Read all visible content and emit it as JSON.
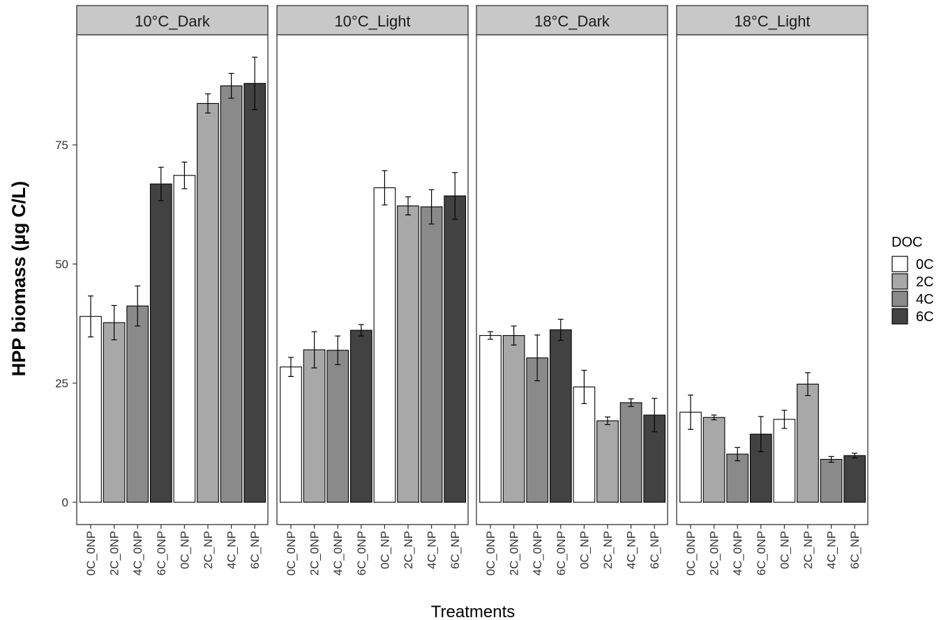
{
  "chart_data": {
    "type": "bar",
    "title": "",
    "xlabel": "Treatments",
    "ylabel": "HPP biomass (µg C/L)",
    "ylim": [
      0,
      97
    ],
    "yticks": [
      "0",
      "25",
      "50",
      "75"
    ],
    "grid": false,
    "legend": {
      "title": "DOC",
      "position": "right",
      "entries": [
        {
          "label": "0C",
          "color": "#ffffff"
        },
        {
          "label": "2C",
          "color": "#a8a8a8"
        },
        {
          "label": "4C",
          "color": "#8a8a8a"
        },
        {
          "label": "6C",
          "color": "#424242"
        }
      ]
    },
    "categories": [
      "0C_0NP",
      "2C_0NP",
      "4C_0NP",
      "6C_0NP",
      "0C_NP",
      "2C_NP",
      "4C_NP",
      "6C_NP"
    ],
    "fill_by_category": [
      "0C",
      "2C",
      "4C",
      "6C",
      "0C",
      "2C",
      "4C",
      "6C"
    ],
    "panels": [
      {
        "strip": "10°C_Dark",
        "values": [
          39.0,
          37.7,
          41.2,
          66.8,
          68.6,
          83.7,
          87.4,
          87.9
        ],
        "errors": [
          4.3,
          3.6,
          4.2,
          3.5,
          2.8,
          2.0,
          2.6,
          5.5
        ]
      },
      {
        "strip": "10°C_Light",
        "values": [
          28.4,
          32.0,
          31.9,
          36.1,
          66.0,
          62.2,
          62.0,
          64.3
        ],
        "errors": [
          2.0,
          3.8,
          3.0,
          1.2,
          3.6,
          1.9,
          3.6,
          4.9
        ]
      },
      {
        "strip": "18°C_Dark",
        "values": [
          35.0,
          35.0,
          30.3,
          36.2,
          24.2,
          17.1,
          20.9,
          18.3
        ],
        "errors": [
          0.8,
          2.0,
          4.8,
          2.2,
          3.5,
          0.8,
          0.8,
          3.5
        ]
      },
      {
        "strip": "18°C_Light",
        "values": [
          18.9,
          17.8,
          10.1,
          14.3,
          17.4,
          24.8,
          9.0,
          9.8
        ],
        "errors": [
          3.6,
          0.5,
          1.4,
          3.7,
          1.9,
          2.4,
          0.6,
          0.5
        ]
      }
    ]
  }
}
